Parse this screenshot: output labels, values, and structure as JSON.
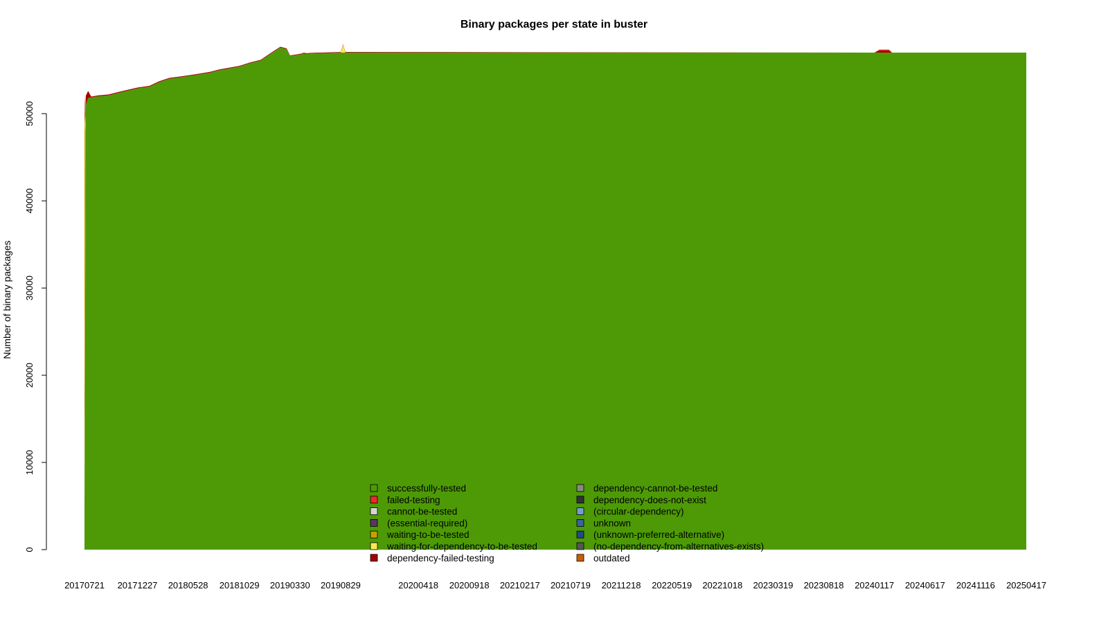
{
  "chart_data": {
    "type": "area",
    "title": "Binary packages per state in buster",
    "xlabel": "",
    "ylabel": "Number of binary packages",
    "ylim": [
      0,
      57000
    ],
    "y_ticks": [
      0,
      10000,
      20000,
      30000,
      40000,
      50000
    ],
    "x_ticks": [
      "20170721",
      "20171227",
      "20180528",
      "20181029",
      "20190330",
      "20190829",
      "20200418",
      "20200918",
      "20210217",
      "20210719",
      "20211218",
      "20220519",
      "20221018",
      "20230319",
      "20230818",
      "20240117",
      "20240617",
      "20241116",
      "20250417"
    ],
    "x_range": [
      "20170721",
      "20250417"
    ],
    "grid": false,
    "legend_position": "bottom-center",
    "legend": [
      {
        "name": "successfully-tested",
        "color": "#4e9a06"
      },
      {
        "name": "failed-testing",
        "color": "#ef2929"
      },
      {
        "name": "cannot-be-tested",
        "color": "#d3d7cf"
      },
      {
        "name": "(essential-required)",
        "color": "#5c3566"
      },
      {
        "name": "waiting-to-be-tested",
        "color": "#c4a000"
      },
      {
        "name": "waiting-for-dependency-to-be-tested",
        "color": "#fce94f"
      },
      {
        "name": "dependency-failed-testing",
        "color": "#a40000"
      },
      {
        "name": "dependency-cannot-be-tested",
        "color": "#888a85"
      },
      {
        "name": "dependency-does-not-exist",
        "color": "#2e3436"
      },
      {
        "name": "(circular-dependency)",
        "color": "#729fcf"
      },
      {
        "name": "unknown",
        "color": "#3465a4"
      },
      {
        "name": "(unknown-preferred-alternative)",
        "color": "#204a87"
      },
      {
        "name": "(no-dependency-from-alternatives-exists)",
        "color": "#555753"
      },
      {
        "name": "outdated",
        "color": "#ce5c00"
      }
    ],
    "series": [
      {
        "name": "successfully-tested",
        "color": "#4e9a06",
        "points": [
          [
            "20170721",
            5000
          ],
          [
            "20170725",
            51000
          ],
          [
            "20170801",
            51800
          ],
          [
            "20170901",
            52000
          ],
          [
            "20171001",
            52100
          ],
          [
            "20171101",
            52400
          ],
          [
            "20171227",
            52900
          ],
          [
            "20180201",
            53100
          ],
          [
            "20180301",
            53600
          ],
          [
            "20180401",
            54000
          ],
          [
            "20180528",
            54300
          ],
          [
            "20180701",
            54500
          ],
          [
            "20180801",
            54700
          ],
          [
            "20180901",
            55000
          ],
          [
            "20181029",
            55400
          ],
          [
            "20181201",
            55800
          ],
          [
            "20190101",
            56100
          ],
          [
            "20190201",
            56900
          ],
          [
            "20190301",
            57600
          ],
          [
            "20190320",
            57400
          ],
          [
            "20190330",
            56600
          ],
          [
            "20190501",
            56800
          ],
          [
            "20190601",
            56900
          ],
          [
            "20190829",
            57000
          ],
          [
            "20200418",
            57000
          ],
          [
            "20250417",
            57000
          ]
        ]
      },
      {
        "name": "waiting-to-be-tested",
        "color": "#c4a000",
        "points": [
          [
            "20170721",
            46000
          ],
          [
            "20170723",
            20000
          ],
          [
            "20170725",
            0
          ]
        ]
      },
      {
        "name": "waiting-for-dependency-to-be-tested",
        "color": "#fce94f",
        "points": [
          [
            "20170721",
            0
          ],
          [
            "20170723",
            800
          ],
          [
            "20170725",
            0
          ],
          [
            "20190829",
            0
          ],
          [
            "20190905",
            900
          ],
          [
            "20190912",
            0
          ]
        ]
      },
      {
        "name": "dependency-failed-testing",
        "color": "#a40000",
        "points": [
          [
            "20170721",
            1200
          ],
          [
            "20170801",
            800
          ],
          [
            "20170810",
            100
          ],
          [
            "20240117",
            0
          ],
          [
            "20240201",
            250
          ],
          [
            "20240301",
            250
          ],
          [
            "20240310",
            0
          ]
        ]
      },
      {
        "name": "failed-testing",
        "color": "#ef2929",
        "points": [
          [
            "20190501",
            0
          ],
          [
            "20190510",
            100
          ],
          [
            "20190520",
            0
          ],
          [
            "20240117",
            0
          ],
          [
            "20240201",
            100
          ],
          [
            "20240301",
            100
          ],
          [
            "20240310",
            0
          ]
        ]
      }
    ]
  }
}
